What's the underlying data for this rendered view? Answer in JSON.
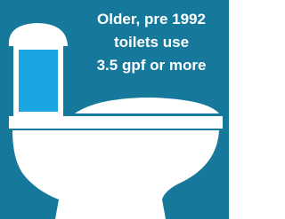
{
  "caption": {
    "lines": [
      "Older, pre 1992",
      "toilets use",
      "3.5 gpf or more"
    ]
  }
}
